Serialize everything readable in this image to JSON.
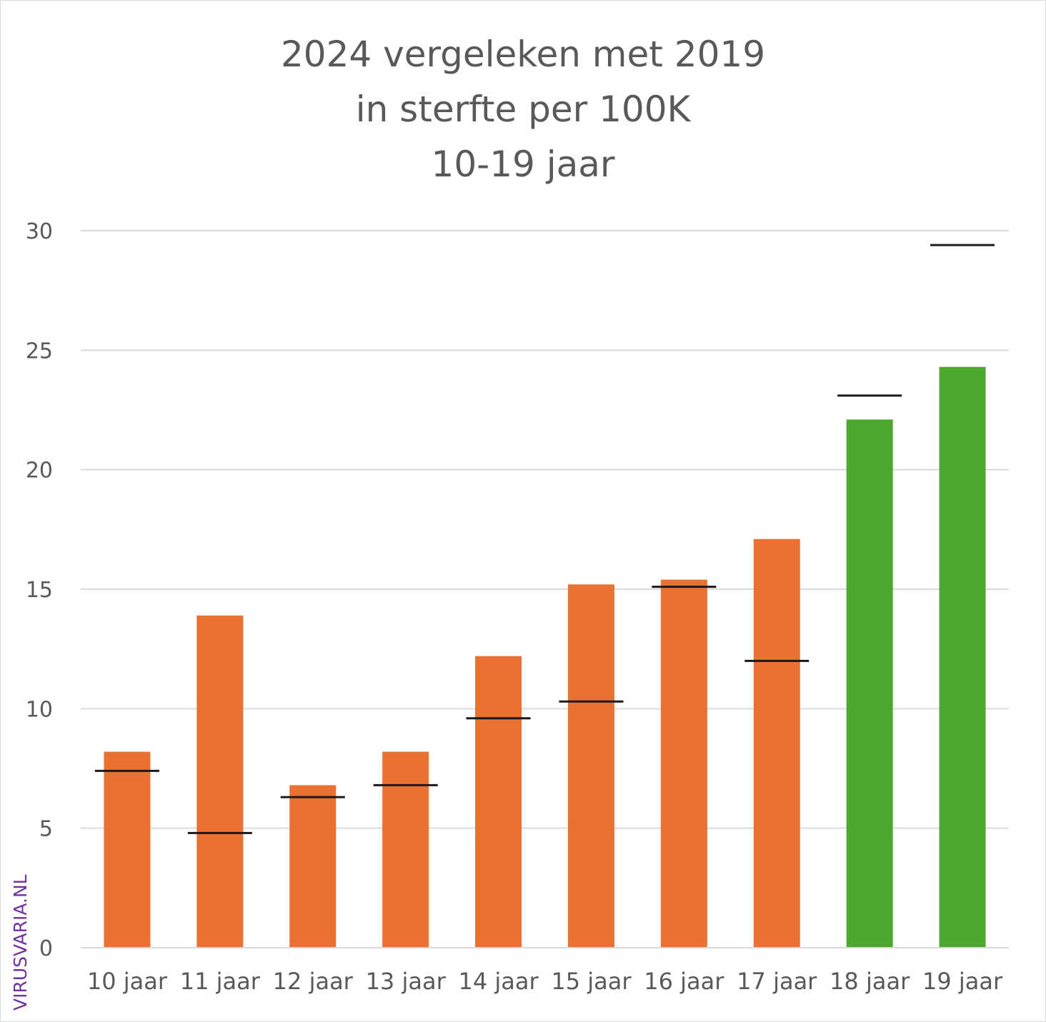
{
  "chart_data": {
    "type": "bar",
    "title": [
      "2024 vergeleken met 2019",
      "in sterfte per 100K",
      "10-19 jaar"
    ],
    "xlabel": "",
    "ylabel": "",
    "ylim": [
      0,
      30
    ],
    "yticks": [
      "0",
      "5",
      "10",
      "15",
      "20",
      "25",
      "30"
    ],
    "grid": true,
    "categories": [
      "10 jaar",
      "11 jaar",
      "12 jaar",
      "13 jaar",
      "14 jaar",
      "15 jaar",
      "16 jaar",
      "17 jaar",
      "18 jaar",
      "19 jaar"
    ],
    "series": [
      {
        "name": "2024",
        "type": "bar",
        "values": [
          8.2,
          13.9,
          6.8,
          8.2,
          12.2,
          15.2,
          15.4,
          17.1,
          22.1,
          24.3
        ],
        "colors": [
          "#E97132",
          "#E97132",
          "#E97132",
          "#E97132",
          "#E97132",
          "#E97132",
          "#E97132",
          "#E97132",
          "#4EA72E",
          "#4EA72E"
        ]
      },
      {
        "name": "2019",
        "type": "marker-line",
        "values": [
          7.4,
          4.8,
          6.3,
          6.8,
          9.6,
          10.3,
          15.1,
          12.0,
          23.1,
          29.4
        ],
        "color": "#1a1a1a"
      }
    ]
  },
  "watermark": "VIRUSVARIA.NL"
}
